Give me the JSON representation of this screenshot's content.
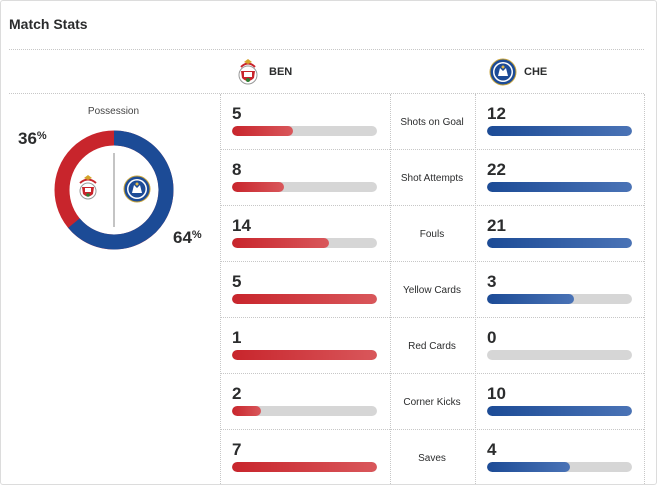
{
  "title": "Match Stats",
  "teams": {
    "home": {
      "abbr": "BEN",
      "crest_icon": "benfica-crest-icon",
      "color": "#d0282e"
    },
    "away": {
      "abbr": "CHE",
      "crest_icon": "chelsea-crest-icon",
      "color": "#1c4b96"
    }
  },
  "possession": {
    "label": "Possession",
    "home_pct": "36",
    "away_pct": "64",
    "pct_symbol": "%"
  },
  "stats": [
    {
      "label": "Shots on Goal",
      "home": "5",
      "away": "12",
      "home_fill": 0.42,
      "away_fill": 1.0
    },
    {
      "label": "Shot Attempts",
      "home": "8",
      "away": "22",
      "home_fill": 0.36,
      "away_fill": 1.0
    },
    {
      "label": "Fouls",
      "home": "14",
      "away": "21",
      "home_fill": 0.67,
      "away_fill": 1.0
    },
    {
      "label": "Yellow Cards",
      "home": "5",
      "away": "3",
      "home_fill": 1.0,
      "away_fill": 0.6
    },
    {
      "label": "Red Cards",
      "home": "1",
      "away": "0",
      "home_fill": 1.0,
      "away_fill": 0.0
    },
    {
      "label": "Corner Kicks",
      "home": "2",
      "away": "10",
      "home_fill": 0.2,
      "away_fill": 1.0
    },
    {
      "label": "Saves",
      "home": "7",
      "away": "4",
      "home_fill": 1.0,
      "away_fill": 0.57
    }
  ]
}
